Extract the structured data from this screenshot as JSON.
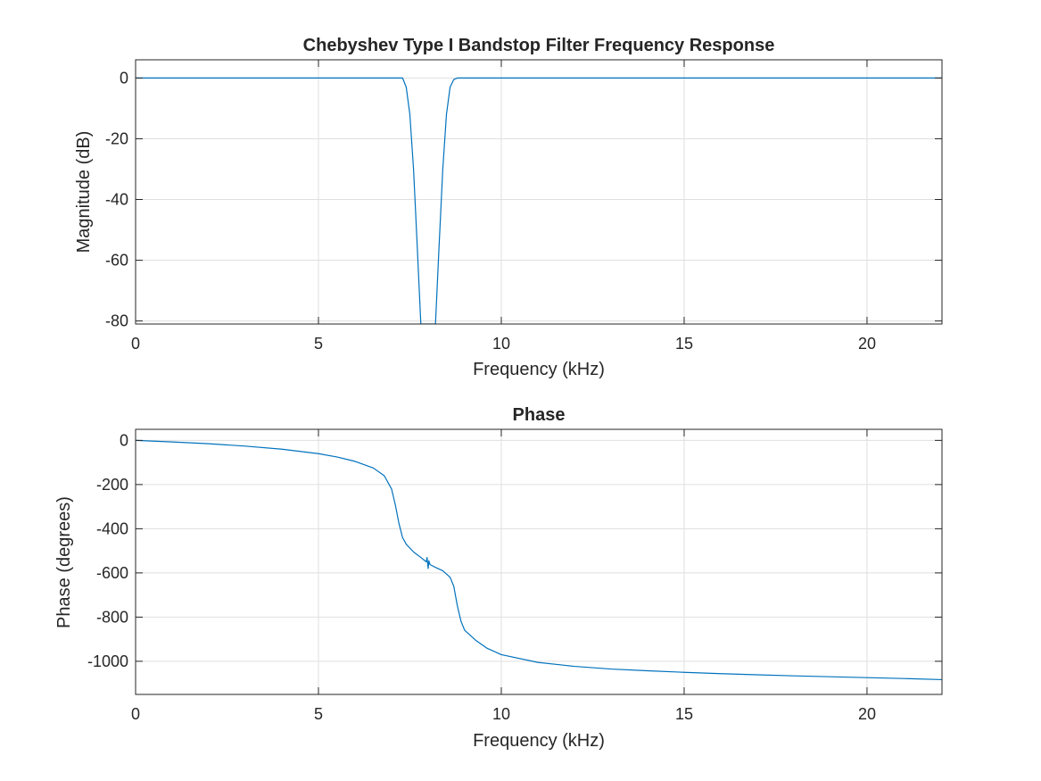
{
  "chart_data": [
    {
      "type": "line",
      "title": "Chebyshev Type I Bandstop Filter Frequency Response",
      "xlabel": "Frequency (kHz)",
      "ylabel": "Magnitude (dB)",
      "xlim": [
        0,
        22.05
      ],
      "ylim": [
        -81,
        6
      ],
      "xticks": [
        0,
        5,
        10,
        15,
        20
      ],
      "yticks": [
        0,
        -20,
        -40,
        -60,
        -80
      ],
      "grid": true,
      "color": "#0072BD",
      "series": [
        {
          "x": [
            0,
            5,
            6.5,
            7.0,
            7.2,
            7.3,
            7.4,
            7.5,
            7.6,
            7.7,
            7.8,
            8.2,
            8.3,
            8.4,
            8.5,
            8.6,
            8.7,
            8.8,
            9.0,
            10,
            15,
            20,
            22.05
          ],
          "y": [
            0,
            0,
            0,
            0,
            0,
            0,
            -3,
            -12,
            -30,
            -55,
            -81,
            -81,
            -55,
            -30,
            -12,
            -3,
            -0.5,
            0,
            0,
            0,
            0,
            0,
            0
          ]
        }
      ]
    },
    {
      "type": "line",
      "title": "Phase",
      "xlabel": "Frequency (kHz)",
      "ylabel": "Phase (degrees)",
      "xlim": [
        0,
        22.05
      ],
      "ylim": [
        -1150,
        50
      ],
      "xticks": [
        0,
        5,
        10,
        15,
        20
      ],
      "yticks": [
        0,
        -200,
        -400,
        -600,
        -800,
        -1000
      ],
      "grid": true,
      "color": "#0072BD",
      "series": [
        {
          "x": [
            0,
            1,
            2,
            3,
            4,
            5,
            5.5,
            6,
            6.5,
            6.8,
            7.0,
            7.1,
            7.2,
            7.3,
            7.4,
            7.6,
            7.8,
            7.95,
            7.97,
            8.0,
            8.02,
            8.05,
            8.2,
            8.4,
            8.6,
            8.7,
            8.8,
            8.9,
            9.0,
            9.3,
            9.6,
            10,
            11,
            12,
            13,
            14,
            15,
            16,
            17,
            18,
            19,
            20,
            21,
            22.05
          ],
          "y": [
            0,
            -7,
            -15,
            -26,
            -40,
            -60,
            -75,
            -95,
            -125,
            -160,
            -220,
            -290,
            -375,
            -440,
            -470,
            -505,
            -530,
            -550,
            -530,
            -580,
            -545,
            -562,
            -575,
            -590,
            -620,
            -660,
            -750,
            -820,
            -860,
            -905,
            -940,
            -970,
            -1005,
            -1023,
            -1035,
            -1043,
            -1050,
            -1056,
            -1061,
            -1066,
            -1070,
            -1074,
            -1078,
            -1083
          ]
        }
      ]
    }
  ]
}
